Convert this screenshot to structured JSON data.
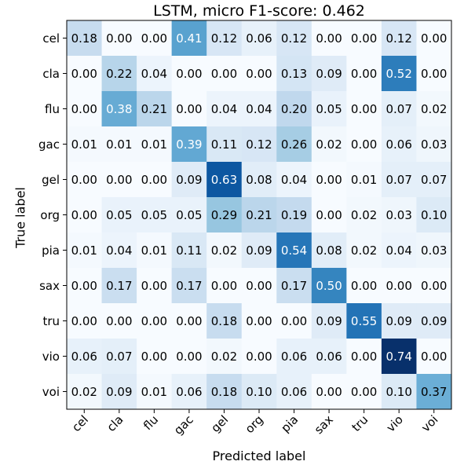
{
  "chart_data": {
    "type": "heatmap",
    "title": "LSTM, micro F1-score: 0.462",
    "xlabel": "Predicted label",
    "ylabel": "True label",
    "colormap": "Blues",
    "value_range": [
      0,
      0.74
    ],
    "x_categories": [
      "cel",
      "cla",
      "flu",
      "gac",
      "gel",
      "org",
      "pia",
      "sax",
      "tru",
      "vio",
      "voi"
    ],
    "y_categories": [
      "cel",
      "cla",
      "flu",
      "gac",
      "gel",
      "org",
      "pia",
      "sax",
      "tru",
      "vio",
      "voi"
    ],
    "values": [
      [
        0.18,
        0.0,
        0.0,
        0.41,
        0.12,
        0.06,
        0.12,
        0.0,
        0.0,
        0.12,
        0.0
      ],
      [
        0.0,
        0.22,
        0.04,
        0.0,
        0.0,
        0.0,
        0.13,
        0.09,
        0.0,
        0.52,
        0.0
      ],
      [
        0.0,
        0.38,
        0.21,
        0.0,
        0.04,
        0.04,
        0.2,
        0.05,
        0.0,
        0.07,
        0.02
      ],
      [
        0.01,
        0.01,
        0.01,
        0.39,
        0.11,
        0.12,
        0.26,
        0.02,
        0.0,
        0.06,
        0.03
      ],
      [
        0.0,
        0.0,
        0.0,
        0.09,
        0.63,
        0.08,
        0.04,
        0.0,
        0.01,
        0.07,
        0.07
      ],
      [
        0.0,
        0.05,
        0.05,
        0.05,
        0.29,
        0.21,
        0.19,
        0.0,
        0.02,
        0.03,
        0.1
      ],
      [
        0.01,
        0.04,
        0.01,
        0.11,
        0.02,
        0.09,
        0.54,
        0.08,
        0.02,
        0.04,
        0.03
      ],
      [
        0.0,
        0.17,
        0.0,
        0.17,
        0.0,
        0.0,
        0.17,
        0.5,
        0.0,
        0.0,
        0.0
      ],
      [
        0.0,
        0.0,
        0.0,
        0.0,
        0.18,
        0.0,
        0.0,
        0.09,
        0.55,
        0.09,
        0.09
      ],
      [
        0.06,
        0.07,
        0.0,
        0.0,
        0.02,
        0.0,
        0.06,
        0.06,
        0.0,
        0.74,
        0.0
      ],
      [
        0.02,
        0.09,
        0.01,
        0.06,
        0.18,
        0.1,
        0.06,
        0.0,
        0.0,
        0.1,
        0.37
      ]
    ]
  }
}
